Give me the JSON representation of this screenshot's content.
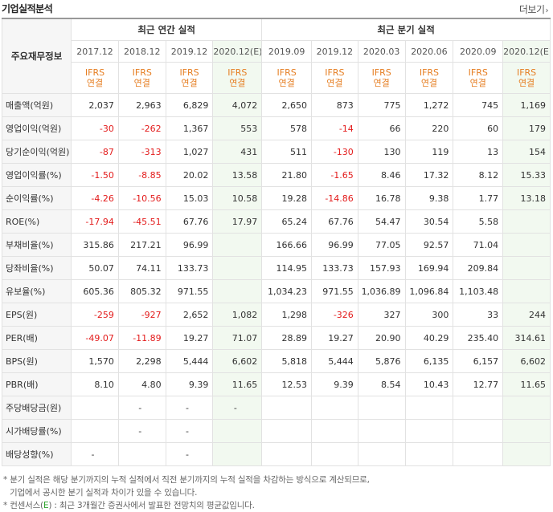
{
  "header": {
    "title": "기업실적분석",
    "more_label": "더보기",
    "more_arrow": "›"
  },
  "table": {
    "row_header_label": "주요재무정보",
    "group_annual": "최근 연간 실적",
    "group_quarter": "최근 분기 실적",
    "annual_periods": [
      "2017.12",
      "2018.12",
      "2019.12",
      "2020.12(E)"
    ],
    "quarter_periods": [
      "2019.09",
      "2019.12",
      "2020.03",
      "2020.06",
      "2020.09",
      "2020.12(E)"
    ],
    "basis_line1": "IFRS",
    "basis_line2": "연결",
    "rows": [
      {
        "label": "매출액(억원)",
        "values": [
          "2,037",
          "2,963",
          "6,829",
          "4,072",
          "2,650",
          "873",
          "775",
          "1,272",
          "745",
          "1,169"
        ]
      },
      {
        "label": "영업이익(억원)",
        "values": [
          "-30",
          "-262",
          "1,367",
          "553",
          "578",
          "-14",
          "66",
          "220",
          "60",
          "179"
        ]
      },
      {
        "label": "당기순이익(억원)",
        "values": [
          "-87",
          "-313",
          "1,027",
          "431",
          "511",
          "-130",
          "130",
          "119",
          "13",
          "154"
        ]
      },
      {
        "label": "영업이익률(%)",
        "values": [
          "-1.50",
          "-8.85",
          "20.02",
          "13.58",
          "21.80",
          "-1.65",
          "8.46",
          "17.32",
          "8.12",
          "15.33"
        ]
      },
      {
        "label": "순이익률(%)",
        "values": [
          "-4.26",
          "-10.56",
          "15.03",
          "10.58",
          "19.28",
          "-14.86",
          "16.78",
          "9.38",
          "1.77",
          "13.18"
        ]
      },
      {
        "label": "ROE(%)",
        "values": [
          "-17.94",
          "-45.51",
          "67.76",
          "17.97",
          "65.24",
          "67.76",
          "54.47",
          "30.54",
          "5.58",
          ""
        ]
      },
      {
        "label": "부채비율(%)",
        "values": [
          "315.86",
          "217.21",
          "96.99",
          "",
          "166.66",
          "96.99",
          "77.05",
          "92.57",
          "71.04",
          ""
        ]
      },
      {
        "label": "당좌비율(%)",
        "values": [
          "50.07",
          "74.11",
          "133.73",
          "",
          "114.95",
          "133.73",
          "157.93",
          "169.94",
          "209.84",
          ""
        ]
      },
      {
        "label": "유보율(%)",
        "values": [
          "605.36",
          "805.32",
          "971.55",
          "",
          "1,034.23",
          "971.55",
          "1,036.89",
          "1,096.84",
          "1,103.48",
          ""
        ]
      },
      {
        "label": "EPS(원)",
        "values": [
          "-259",
          "-927",
          "2,652",
          "1,082",
          "1,298",
          "-326",
          "327",
          "300",
          "33",
          "244"
        ]
      },
      {
        "label": "PER(배)",
        "values": [
          "-49.07",
          "-11.89",
          "19.27",
          "71.07",
          "28.89",
          "19.27",
          "20.90",
          "40.29",
          "235.40",
          "314.61"
        ]
      },
      {
        "label": "BPS(원)",
        "values": [
          "1,570",
          "2,298",
          "5,444",
          "6,602",
          "5,818",
          "5,444",
          "5,876",
          "6,135",
          "6,157",
          "6,602"
        ]
      },
      {
        "label": "PBR(배)",
        "values": [
          "8.10",
          "4.80",
          "9.39",
          "11.65",
          "12.53",
          "9.39",
          "8.54",
          "10.43",
          "12.77",
          "11.65"
        ]
      },
      {
        "label": "주당배당금(원)",
        "values": [
          "",
          "-",
          "-",
          "-",
          "",
          "",
          "",
          "",
          "",
          ""
        ]
      },
      {
        "label": "시가배당률(%)",
        "values": [
          "",
          "-",
          "-",
          "",
          "",
          "",
          "",
          "",
          "",
          ""
        ]
      },
      {
        "label": "배당성향(%)",
        "values": [
          "-",
          "",
          "-",
          "",
          "",
          "",
          "",
          "",
          "",
          ""
        ]
      }
    ]
  },
  "notes": {
    "line1": "* 분기 실적은 해당 분기까지의 누적 실적에서 직전 분기까지의 누적 실적을 차감하는 방식으로 계산되므로,",
    "line2": "기업에서 공시한 분기 실적과 차이가 있을 수 있습니다.",
    "line3_prefix": "* 컨센서스(",
    "line3_e": "E",
    "line3_suffix": ") : 최근 3개월간 증권사에서 발표한 전망치의 평균값입니다."
  },
  "colors": {
    "negative": "#e31b1b",
    "ifrs": "#e67e22",
    "estimate_bg": "#f2f9f0",
    "consensus_mark": "#2aa12a"
  }
}
